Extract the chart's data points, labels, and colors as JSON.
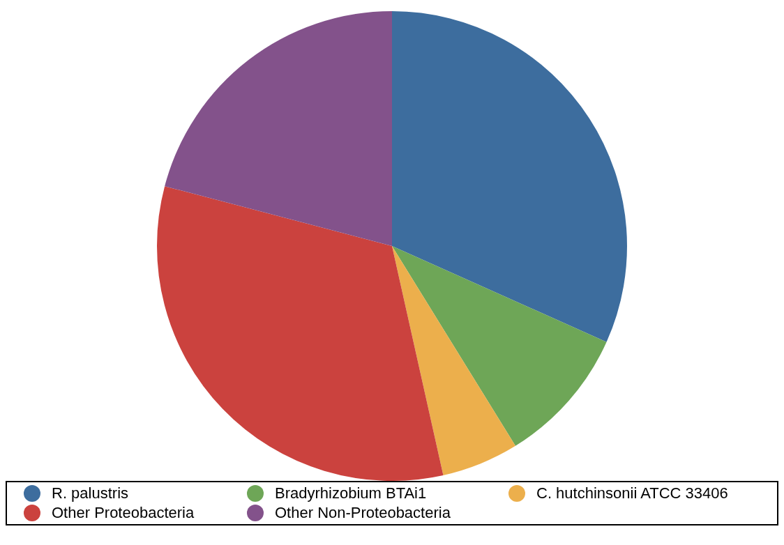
{
  "chart_data": {
    "type": "pie",
    "categories": [
      "R. palustris",
      "Bradyrhizobium BTAi1",
      "C. hutchinsonii ATCC 33406",
      "Other Proteobacteria",
      "Other Non-Proteobacteria"
    ],
    "values": [
      31.7,
      9.5,
      5.3,
      32.6,
      20.9
    ],
    "colors": [
      "#3d6d9e",
      "#6ea657",
      "#ecaf4c",
      "#cb423e",
      "#83528b"
    ],
    "legend": "bottom"
  }
}
